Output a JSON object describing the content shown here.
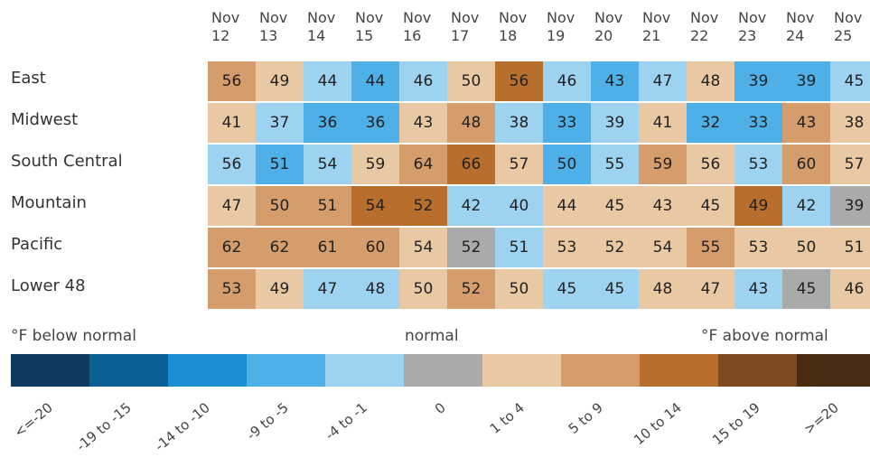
{
  "chart_data": {
    "type": "heatmap",
    "columns": [
      "Nov 12",
      "Nov 13",
      "Nov 14",
      "Nov 15",
      "Nov 16",
      "Nov 17",
      "Nov 18",
      "Nov 19",
      "Nov 20",
      "Nov 21",
      "Nov 22",
      "Nov 23",
      "Nov 24",
      "Nov 25"
    ],
    "rows": [
      "East",
      "Midwest",
      "South Central",
      "Mountain",
      "Pacific",
      "Lower 48"
    ],
    "values": [
      [
        56,
        49,
        44,
        44,
        46,
        50,
        56,
        46,
        43,
        47,
        48,
        39,
        39,
        45
      ],
      [
        41,
        37,
        36,
        36,
        43,
        48,
        38,
        33,
        39,
        41,
        32,
        33,
        43,
        38
      ],
      [
        56,
        51,
        54,
        59,
        64,
        66,
        57,
        50,
        55,
        59,
        56,
        53,
        60,
        57
      ],
      [
        47,
        50,
        51,
        54,
        52,
        42,
        40,
        44,
        45,
        43,
        45,
        49,
        42,
        39
      ],
      [
        62,
        62,
        61,
        60,
        54,
        52,
        51,
        53,
        52,
        54,
        55,
        53,
        50,
        51
      ],
      [
        53,
        49,
        47,
        48,
        50,
        52,
        50,
        45,
        45,
        48,
        47,
        43,
        45,
        46
      ]
    ],
    "colors": [
      [
        "#d49d6b",
        "#e9c9a3",
        "#9dd3f0",
        "#4eb0e6",
        "#9dd3f0",
        "#e9c9a3",
        "#b86e2d",
        "#9dd3f0",
        "#4eb0e6",
        "#9dd3f0",
        "#e9c9a3",
        "#4eb0e6",
        "#4eb0e6",
        "#9dd3f0"
      ],
      [
        "#e9c9a3",
        "#9dd3f0",
        "#4eb0e6",
        "#4eb0e6",
        "#e9c9a3",
        "#d49d6b",
        "#9dd3f0",
        "#4eb0e6",
        "#9dd3f0",
        "#e9c9a3",
        "#4eb0e6",
        "#4eb0e6",
        "#d49d6b",
        "#e9c9a3"
      ],
      [
        "#9dd3f0",
        "#4eb0e6",
        "#9dd3f0",
        "#e9c9a3",
        "#d49d6b",
        "#b86e2d",
        "#e9c9a3",
        "#4eb0e6",
        "#9dd3f0",
        "#d49d6b",
        "#e9c9a3",
        "#9dd3f0",
        "#d49d6b",
        "#e9c9a3"
      ],
      [
        "#e9c9a3",
        "#d49d6b",
        "#d49d6b",
        "#b86e2d",
        "#b86e2d",
        "#9dd3f0",
        "#9dd3f0",
        "#e9c9a3",
        "#e9c9a3",
        "#e9c9a3",
        "#e9c9a3",
        "#b86e2d",
        "#9dd3f0",
        "#aaaaaa"
      ],
      [
        "#d49d6b",
        "#d49d6b",
        "#d49d6b",
        "#d49d6b",
        "#e9c9a3",
        "#aaaaaa",
        "#9dd3f0",
        "#e9c9a3",
        "#e9c9a3",
        "#e9c9a3",
        "#d49d6b",
        "#e9c9a3",
        "#e9c9a3",
        "#e9c9a3"
      ],
      [
        "#d49d6b",
        "#e9c9a3",
        "#9dd3f0",
        "#9dd3f0",
        "#e9c9a3",
        "#d49d6b",
        "#e9c9a3",
        "#9dd3f0",
        "#9dd3f0",
        "#e9c9a3",
        "#e9c9a3",
        "#9dd3f0",
        "#aaaaaa",
        "#e9c9a3"
      ]
    ],
    "legend": {
      "below": "°F below normal",
      "normal": "normal",
      "above": "°F above normal",
      "items": [
        {
          "label": "<=-20",
          "color": "#0d3b5e"
        },
        {
          "label": "-19 to -15",
          "color": "#0a5f94"
        },
        {
          "label": "-14 to -10",
          "color": "#1a8fd4"
        },
        {
          "label": "-9 to -5",
          "color": "#4eb0e6"
        },
        {
          "label": "-4 to -1",
          "color": "#9dd3f0"
        },
        {
          "label": "0",
          "color": "#aaaaaa"
        },
        {
          "label": "1 to 4",
          "color": "#e9c9a3"
        },
        {
          "label": "5 to 9",
          "color": "#d49d6b"
        },
        {
          "label": "10 to 14",
          "color": "#b86e2d"
        },
        {
          "label": "15 to 19",
          "color": "#7f4a1f"
        },
        {
          "label": ">=20",
          "color": "#4a2c12"
        }
      ]
    }
  }
}
